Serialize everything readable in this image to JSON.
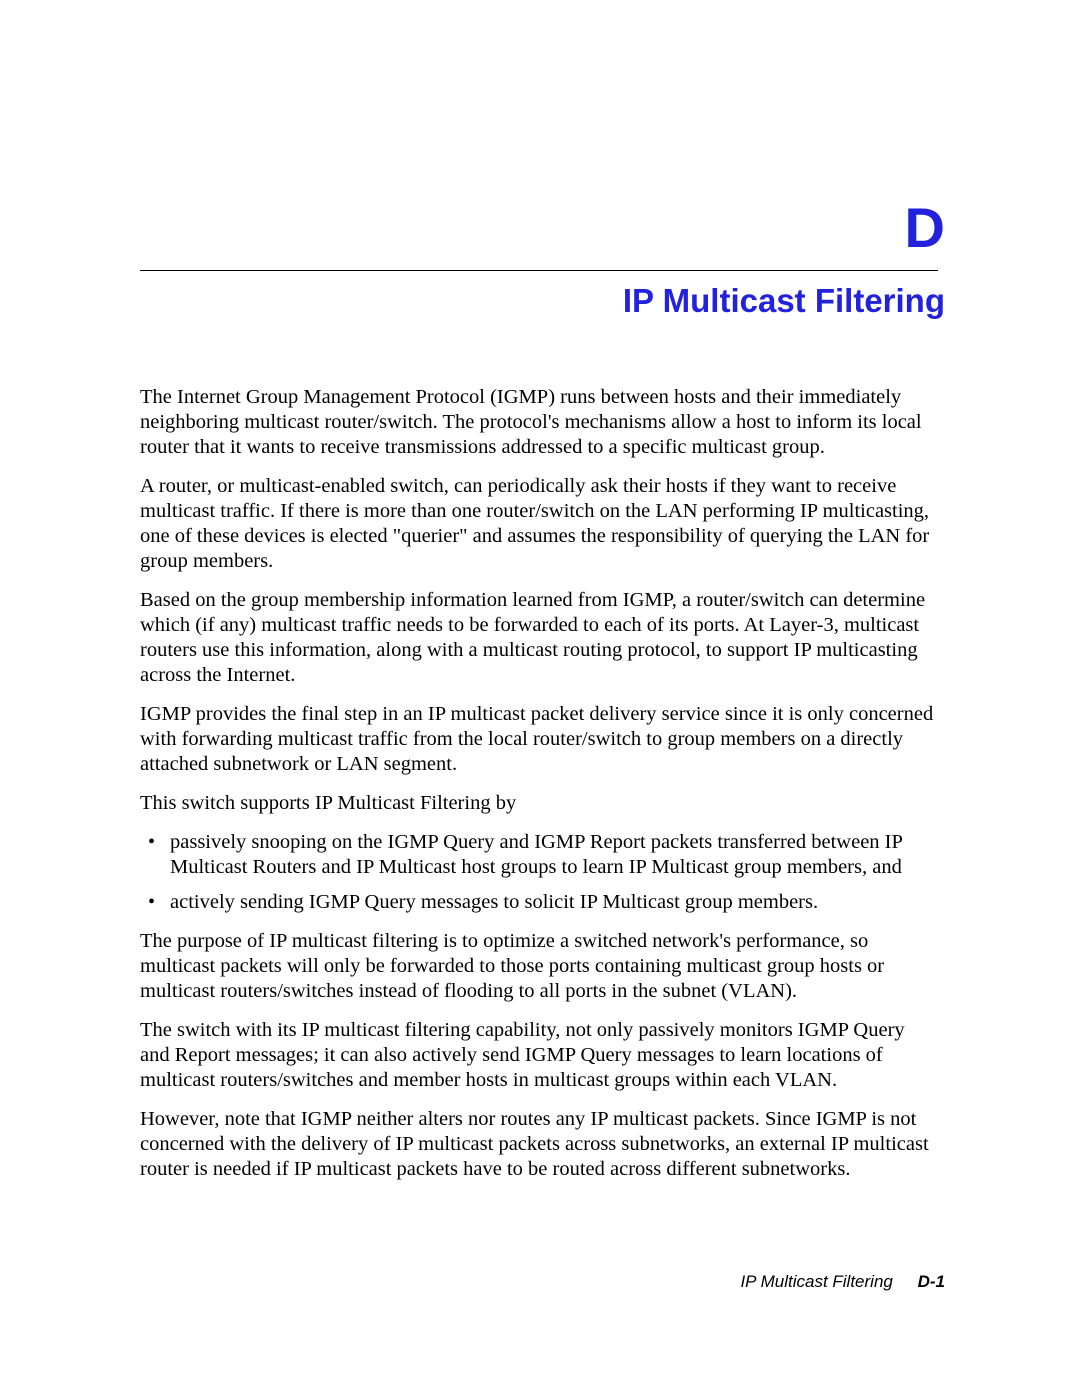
{
  "colors": {
    "heading": "#2222dd",
    "text": "#000000",
    "background": "#ffffff",
    "rule": "#000000"
  },
  "typography": {
    "body_family": "Times New Roman",
    "heading_family": "Arial",
    "appendix_letter_size_pt": 42,
    "title_size_pt": 25,
    "body_size_pt": 15,
    "footer_size_pt": 13
  },
  "header": {
    "appendix_letter": "D",
    "title": "IP Multicast Filtering"
  },
  "body": {
    "p1": "The Internet Group Management Protocol (IGMP) runs between hosts and their immediately neighboring multicast router/switch. The protocol's mechanisms allow a host to inform its local router that it wants to receive transmissions addressed to a specific multicast group.",
    "p2": "A router, or multicast-enabled switch, can periodically ask their hosts if they want to receive multicast traffic. If there is more than one router/switch on the LAN performing IP multicasting, one of these devices is elected \"querier\" and assumes the responsibility of querying the LAN for group members.",
    "p3": "Based on the group membership information learned from IGMP, a router/switch can determine which (if any) multicast traffic needs to be forwarded to each of its ports. At Layer-3, multicast routers use this information, along with a multicast routing protocol, to support IP multicasting across the Internet.",
    "p4": "IGMP provides the final step in an IP multicast packet delivery service since it is only concerned with forwarding multicast traffic from the local router/switch to group members on a directly attached subnetwork or LAN segment.",
    "p5": "This switch supports IP Multicast Filtering by",
    "bullets": [
      "passively snooping on the IGMP Query and IGMP Report packets transferred between IP Multicast Routers and IP Multicast host groups to learn IP Multicast group members, and",
      "actively sending IGMP Query messages to solicit IP Multicast group members."
    ],
    "p6": "The purpose of IP multicast filtering is to optimize a switched network's performance, so multicast packets will only be forwarded to those ports containing multicast group hosts or multicast routers/switches instead of flooding to all ports in the subnet (VLAN).",
    "p7": "The switch with its IP multicast filtering capability, not only passively monitors IGMP Query and Report messages; it can also actively send IGMP Query messages to learn locations of multicast routers/switches and member hosts in multicast groups within each VLAN.",
    "p8": "However, note that IGMP neither alters nor routes any IP multicast packets. Since IGMP is not concerned with the delivery of IP multicast packets across subnetworks, an external IP multicast router is needed if IP multicast packets have to be routed across different subnetworks."
  },
  "footer": {
    "title": "IP Multicast Filtering",
    "page": "D-1"
  }
}
